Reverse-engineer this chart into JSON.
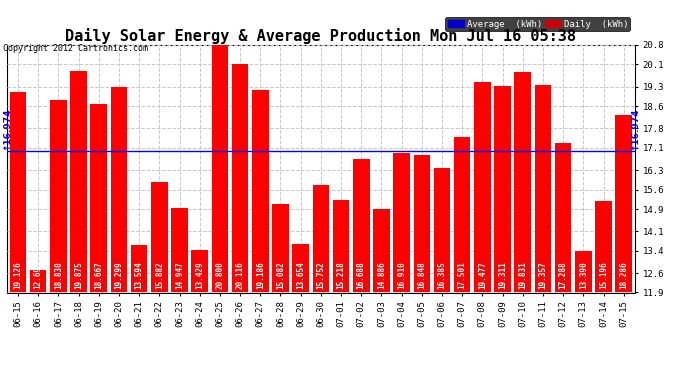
{
  "title": "Daily Solar Energy & Average Production Mon Jul 16 05:38",
  "copyright": "Copyright 2012 Cartronics.com",
  "average_label": "Average  (kWh)",
  "daily_label": "Daily  (kWh)",
  "average_value": 16.974,
  "categories": [
    "06-15",
    "06-16",
    "06-17",
    "06-18",
    "06-19",
    "06-20",
    "06-21",
    "06-22",
    "06-23",
    "06-24",
    "06-25",
    "06-26",
    "06-27",
    "06-28",
    "06-29",
    "06-30",
    "07-01",
    "07-02",
    "07-03",
    "07-04",
    "07-05",
    "07-06",
    "07-07",
    "07-08",
    "07-09",
    "07-10",
    "07-11",
    "07-12",
    "07-13",
    "07-14",
    "07-15"
  ],
  "values": [
    19.126,
    12.693,
    18.83,
    19.875,
    18.667,
    19.299,
    13.594,
    15.882,
    14.947,
    13.429,
    20.8,
    20.116,
    19.186,
    15.082,
    13.654,
    15.752,
    15.218,
    16.688,
    14.886,
    16.91,
    16.848,
    16.385,
    17.501,
    19.477,
    19.311,
    19.831,
    19.357,
    17.288,
    13.39,
    15.196,
    18.286
  ],
  "bar_color": "#ff0000",
  "average_line_color": "#0000ff",
  "background_color": "#ffffff",
  "plot_bg_color": "#ffffff",
  "ymin": 11.9,
  "ymax": 20.8,
  "yticks": [
    11.9,
    12.6,
    13.4,
    14.1,
    14.9,
    15.6,
    16.3,
    17.1,
    17.8,
    18.6,
    19.3,
    20.1,
    20.8
  ],
  "grid_color": "#c8c8c8",
  "title_fontsize": 11,
  "tick_fontsize": 6.5,
  "bar_label_fontsize": 5.5,
  "legend_avg_bg": "#0000cc",
  "legend_daily_bg": "#cc0000",
  "avg_label_text": "↑16.974"
}
